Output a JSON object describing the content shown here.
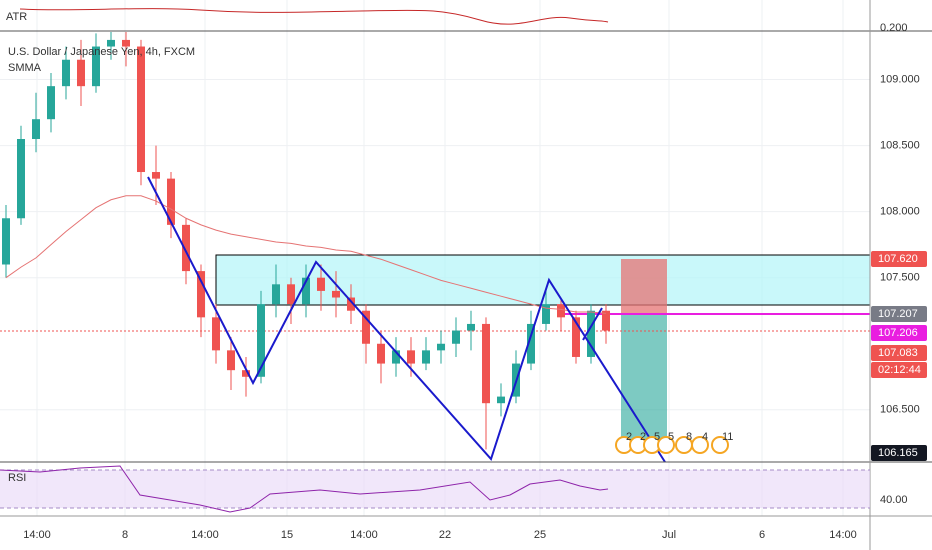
{
  "chart_data": {
    "type": "candlestick",
    "title": "U.S. Dollar / Japanese Yen, 4h, FXCM",
    "indicators": [
      "ATR",
      "SMMA",
      "RSI"
    ],
    "up_color": "#26a69a",
    "down_color": "#ef5350",
    "smma_color": "#e57373",
    "open": [
      107.6,
      107.95,
      108.55,
      108.7,
      108.95,
      109.15,
      108.95,
      109.25,
      109.3,
      109.25,
      108.3,
      108.25,
      107.9,
      107.55,
      107.2,
      106.95,
      106.8,
      106.75,
      107.3,
      107.45,
      107.3,
      107.5,
      107.4,
      107.35,
      107.25,
      107.0,
      106.85,
      106.95,
      106.85,
      106.95,
      107.0,
      107.1,
      107.15,
      106.55,
      106.6,
      106.85,
      107.15,
      107.3,
      107.2,
      106.9,
      107.25
    ],
    "high": [
      108.05,
      108.65,
      108.9,
      109.05,
      109.25,
      109.3,
      109.35,
      109.36,
      109.36,
      109.3,
      108.5,
      108.3,
      107.95,
      107.6,
      107.3,
      107.05,
      106.9,
      107.4,
      107.6,
      107.5,
      107.6,
      107.6,
      107.55,
      107.45,
      107.3,
      107.1,
      107.05,
      107.05,
      107.05,
      107.1,
      107.2,
      107.25,
      107.2,
      106.7,
      106.95,
      107.25,
      107.4,
      107.35,
      107.25,
      107.3,
      107.3
    ],
    "low": [
      107.5,
      107.9,
      108.45,
      108.6,
      108.85,
      108.8,
      108.9,
      109.15,
      109.1,
      108.2,
      108.05,
      107.8,
      107.45,
      107.05,
      106.85,
      106.65,
      106.6,
      106.7,
      107.2,
      107.15,
      107.2,
      107.25,
      107.2,
      107.15,
      106.85,
      106.7,
      106.75,
      106.75,
      106.8,
      106.85,
      106.9,
      106.95,
      106.2,
      106.45,
      106.55,
      106.8,
      107.1,
      107.1,
      106.85,
      106.85,
      107.0
    ],
    "close": [
      107.95,
      108.55,
      108.7,
      108.95,
      109.15,
      108.95,
      109.25,
      109.3,
      109.25,
      108.3,
      108.25,
      107.9,
      107.55,
      107.2,
      106.95,
      106.8,
      106.75,
      107.3,
      107.45,
      107.3,
      107.5,
      107.4,
      107.35,
      107.25,
      107.0,
      106.85,
      106.95,
      106.85,
      106.95,
      107.0,
      107.1,
      107.15,
      106.55,
      106.6,
      106.85,
      107.15,
      107.3,
      107.2,
      106.9,
      107.25,
      107.1
    ],
    "smma": [
      107.5,
      107.58,
      107.65,
      107.75,
      107.85,
      107.94,
      108.03,
      108.09,
      108.12,
      108.12,
      108.08,
      108.02,
      107.95,
      107.9,
      107.86,
      107.83,
      107.81,
      107.79,
      107.77,
      107.76,
      107.74,
      107.73,
      107.71,
      107.7,
      107.67,
      107.64,
      107.6,
      107.56,
      107.52,
      107.48,
      107.45,
      107.42,
      107.39,
      107.36,
      107.33,
      107.3,
      107.27,
      107.26,
      107.24,
      107.24,
      107.23
    ],
    "ylim": [
      106.12,
      109.36
    ],
    "yticks": [
      {
        "value": 109,
        "label": "109.000"
      },
      {
        "value": 108.5,
        "label": "108.500"
      },
      {
        "value": 108,
        "label": "108.000"
      },
      {
        "value": 107.5,
        "label": "107.500"
      },
      {
        "value": 106.5,
        "label": "106.500"
      }
    ],
    "atr_tick": {
      "value": 0.2,
      "label": "0.200"
    },
    "rsi_tick": {
      "value": 40,
      "label": "40.00"
    },
    "price_tags": [
      {
        "label": "107.620",
        "color": "#ef5350"
      },
      {
        "label": "107.207",
        "color": "#787b86"
      },
      {
        "label": "107.206",
        "color": "#e91ee0"
      },
      {
        "label": "107.083",
        "color": "#ef5350"
      },
      {
        "label": "02:12:44",
        "color": "#ef5350"
      },
      {
        "label": "106.165",
        "color": "#131722"
      }
    ],
    "xlabels": [
      "14:00",
      "8",
      "14:00",
      "15",
      "14:00",
      "22",
      "25",
      "Jul",
      "6",
      "14:00"
    ],
    "events": [
      "2",
      "2",
      "5",
      "5",
      "8",
      "4",
      "11"
    ],
    "grid": true
  }
}
